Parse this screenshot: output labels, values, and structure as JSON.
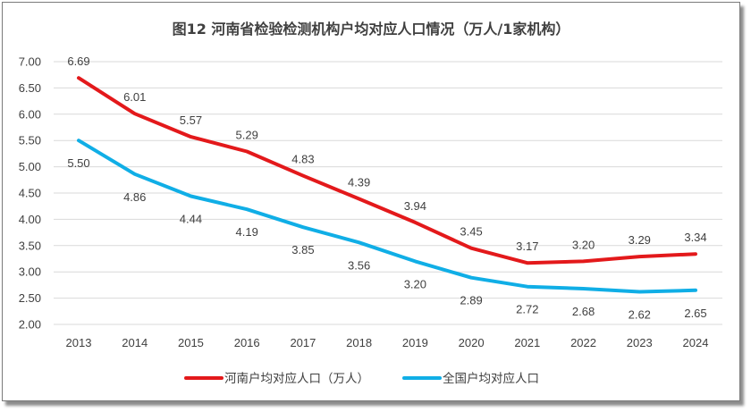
{
  "chart_data": {
    "type": "line",
    "title": "图12  河南省检验检测机构户均对应人口情况（万人/1家机构）",
    "categories": [
      "2013",
      "2014",
      "2015",
      "2016",
      "2017",
      "2018",
      "2019",
      "2020",
      "2021",
      "2022",
      "2023",
      "2024"
    ],
    "y_tick_labels": [
      "2.00",
      "2.50",
      "3.00",
      "3.50",
      "4.00",
      "4.50",
      "5.00",
      "5.50",
      "6.00",
      "6.50",
      "7.00"
    ],
    "ylim": [
      2.0,
      7.0
    ],
    "grid": true,
    "legend_position": "bottom",
    "series": [
      {
        "name": "河南户均对应人口（万人）",
        "color": "#e3191b",
        "values": [
          6.69,
          6.01,
          5.57,
          5.29,
          4.83,
          4.39,
          3.94,
          3.45,
          3.17,
          3.2,
          3.29,
          3.34
        ],
        "labels": [
          "6.69",
          "6.01",
          "5.57",
          "5.29",
          "4.83",
          "4.39",
          "3.94",
          "3.45",
          "3.17",
          "3.20",
          "3.29",
          "3.34"
        ]
      },
      {
        "name": "全国户均对应人口",
        "color": "#10aee6",
        "values": [
          5.5,
          4.86,
          4.44,
          4.19,
          3.85,
          3.56,
          3.2,
          2.89,
          2.72,
          2.68,
          2.62,
          2.65
        ],
        "labels": [
          "5.50",
          "4.86",
          "4.44",
          "4.19",
          "3.85",
          "3.56",
          "3.20",
          "2.89",
          "2.72",
          "2.68",
          "2.62",
          "2.65"
        ]
      }
    ]
  }
}
